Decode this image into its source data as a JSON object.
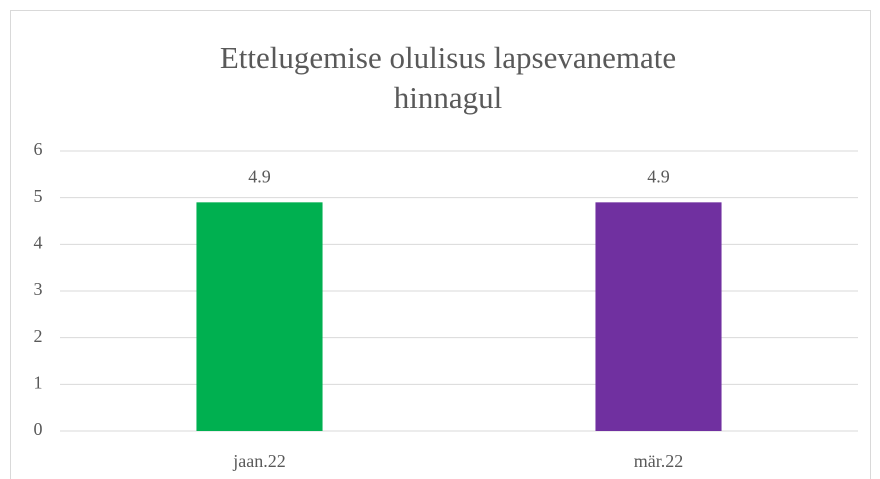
{
  "chart_data": {
    "type": "bar",
    "title": "Ettelugemise olulisus lapsevanemate hinnagul",
    "categories": [
      "jaan.22",
      "mär.22"
    ],
    "values": [
      4.9,
      4.9
    ],
    "colors": [
      "#00b050",
      "#7030a0"
    ],
    "ylim": [
      0,
      6
    ],
    "yticks": [
      0,
      1,
      2,
      3,
      4,
      5,
      6
    ],
    "grid": true
  }
}
